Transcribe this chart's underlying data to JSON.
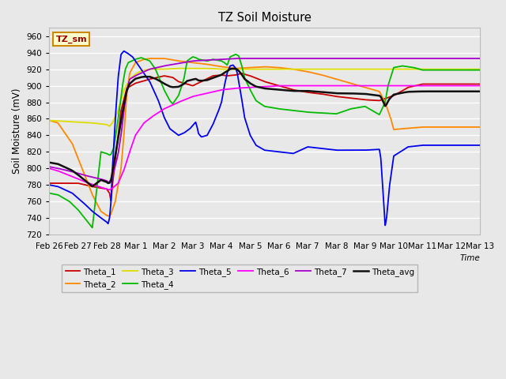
{
  "title": "TZ Soil Moisture",
  "xlabel": "Time",
  "ylabel": "Soil Moisture (mV)",
  "ylim": [
    720,
    970
  ],
  "yticks": [
    720,
    740,
    760,
    780,
    800,
    820,
    840,
    860,
    880,
    900,
    920,
    940,
    960
  ],
  "legend_label": "TZ_sm",
  "bg_color": "#e8e8e8",
  "series_colors": {
    "Theta_1": "#cc0000",
    "Theta_2": "#ff8800",
    "Theta_3": "#dddd00",
    "Theta_4": "#00bb00",
    "Theta_5": "#0000ee",
    "Theta_6": "#ff00ff",
    "Theta_7": "#aa00cc",
    "Theta_avg": "#111111"
  },
  "tick_labels": [
    "Feb 26",
    "Feb 27",
    "Feb 28",
    "Mar 1",
    "Mar 2",
    "Mar 3",
    "Mar 4",
    "Mar 5",
    "Mar 6",
    "Mar 7",
    "Mar 8",
    "Mar 9",
    "Mar 10",
    "Mar 11",
    "Mar 12",
    "Mar 13"
  ]
}
